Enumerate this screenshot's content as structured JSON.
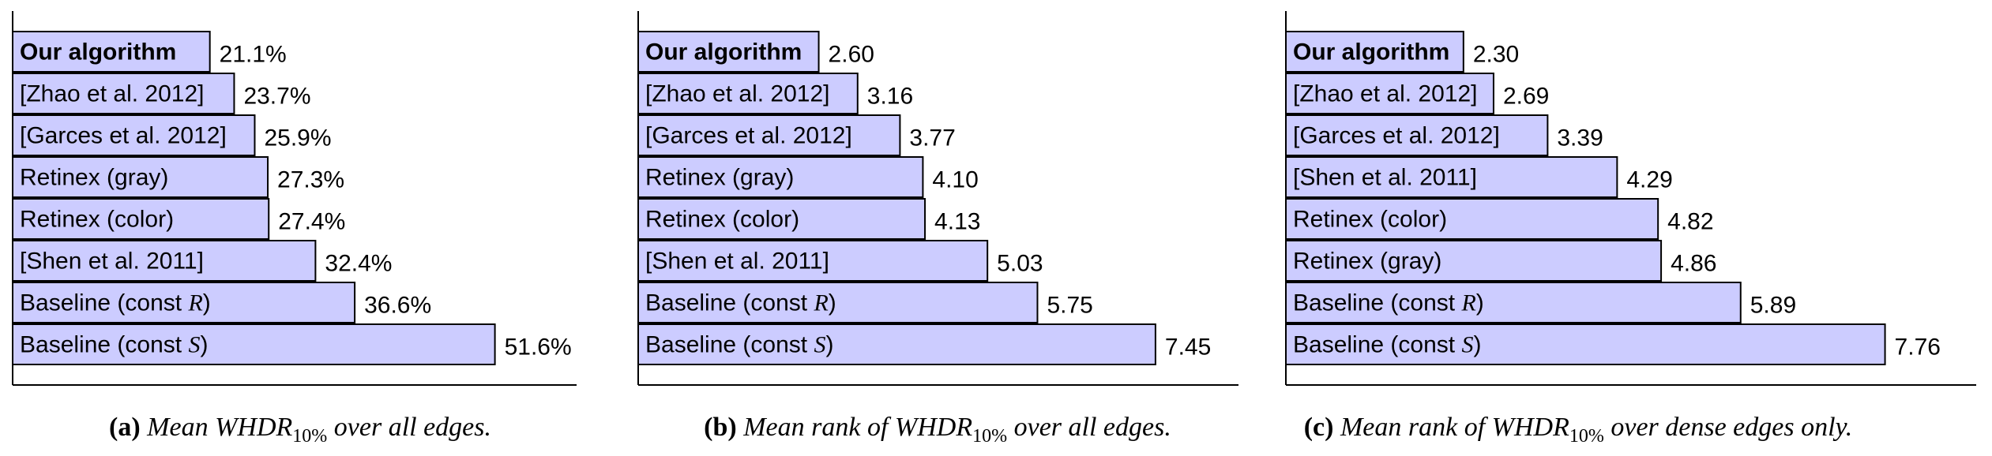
{
  "chart_data": [
    {
      "type": "bar",
      "orientation": "horizontal",
      "categories": [
        "Our algorithm",
        "[Zhao et al. 2012]",
        "[Garces et al. 2012]",
        "Retinex (gray)",
        "Retinex (color)",
        "[Shen et al. 2011]",
        "Baseline (const R)",
        "Baseline (const S)"
      ],
      "values": [
        21.1,
        23.7,
        25.9,
        27.3,
        27.4,
        32.4,
        36.6,
        51.6
      ],
      "value_labels": [
        "21.1%",
        "23.7%",
        "25.9%",
        "27.3%",
        "27.4%",
        "32.4%",
        "36.6%",
        "51.6%"
      ],
      "xlim": [
        0,
        60
      ],
      "bold_category": "Our algorithm",
      "caption": {
        "letter": "(a)",
        "text_before": "Mean WHDR",
        "subscript": "10%",
        "text_after": " over all edges."
      }
    },
    {
      "type": "bar",
      "orientation": "horizontal",
      "categories": [
        "Our algorithm",
        "[Zhao et al. 2012]",
        "[Garces et al. 2012]",
        "Retinex (gray)",
        "Retinex (color)",
        "[Shen et al. 2011]",
        "Baseline (const R)",
        "Baseline (const S)"
      ],
      "values": [
        2.6,
        3.16,
        3.77,
        4.1,
        4.13,
        5.03,
        5.75,
        7.45
      ],
      "value_labels": [
        "2.60",
        "3.16",
        "3.77",
        "4.10",
        "4.13",
        "5.03",
        "5.75",
        "7.45"
      ],
      "xlim": [
        0,
        8.6
      ],
      "bold_category": "Our algorithm",
      "caption": {
        "letter": "(b)",
        "text_before": "Mean rank of WHDR",
        "subscript": "10%",
        "text_after": " over all edges."
      }
    },
    {
      "type": "bar",
      "orientation": "horizontal",
      "categories": [
        "Our algorithm",
        "[Zhao et al. 2012]",
        "[Garces et al. 2012]",
        "[Shen et al. 2011]",
        "Retinex (color)",
        "Retinex (gray)",
        "Baseline (const R)",
        "Baseline (const S)"
      ],
      "values": [
        2.3,
        2.69,
        3.39,
        4.29,
        4.82,
        4.86,
        5.89,
        7.76
      ],
      "value_labels": [
        "2.30",
        "2.69",
        "3.39",
        "4.29",
        "4.82",
        "4.86",
        "5.89",
        "7.76"
      ],
      "xlim": [
        0,
        8.9
      ],
      "bold_category": "Our algorithm",
      "caption": {
        "letter": "(c)",
        "text_before": "Mean rank of WHDR",
        "subscript": "10%",
        "text_after": " over dense edges only."
      }
    }
  ],
  "colors": {
    "bar_fill": "#ccccff",
    "bar_stroke": "#000000",
    "axis": "#000000",
    "text": "#000000"
  }
}
